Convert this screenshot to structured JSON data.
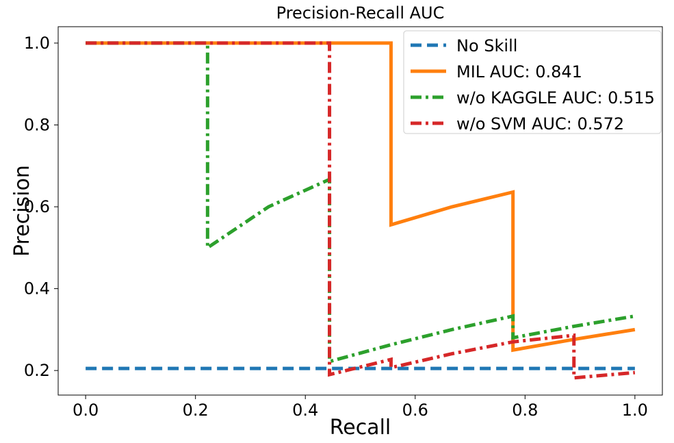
{
  "chart_data": {
    "type": "line",
    "title": "Precision-Recall AUC",
    "xlabel": "Recall",
    "ylabel": "Precision",
    "xlim": [
      -0.05,
      1.05
    ],
    "ylim": [
      0.14,
      1.04
    ],
    "xticks": [
      {
        "value": 0.0,
        "label": "0.0"
      },
      {
        "value": 0.2,
        "label": "0.2"
      },
      {
        "value": 0.4,
        "label": "0.4"
      },
      {
        "value": 0.6,
        "label": "0.6"
      },
      {
        "value": 0.8,
        "label": "0.8"
      },
      {
        "value": 1.0,
        "label": "1.0"
      }
    ],
    "yticks": [
      {
        "value": 0.2,
        "label": "0.2"
      },
      {
        "value": 0.4,
        "label": "0.4"
      },
      {
        "value": 0.6,
        "label": "0.6"
      },
      {
        "value": 0.8,
        "label": "0.8"
      },
      {
        "value": 1.0,
        "label": "1.0"
      }
    ],
    "grid": false,
    "legend_position": "top-right",
    "series": [
      {
        "name": "No Skill",
        "color": "#1f77b4",
        "style": "dashed",
        "x": [
          0.0,
          1.0
        ],
        "y": [
          0.205,
          0.205
        ]
      },
      {
        "name": "MIL AUC: 0.841",
        "color": "#ff7f0e",
        "style": "solid",
        "x": [
          0.0,
          0.111,
          0.222,
          0.333,
          0.444,
          0.556,
          0.556,
          0.667,
          0.778,
          0.778,
          0.889,
          1.0
        ],
        "y": [
          1.0,
          1.0,
          1.0,
          1.0,
          1.0,
          1.0,
          0.556,
          0.6,
          0.636,
          0.25,
          0.276,
          0.3
        ]
      },
      {
        "name": "w/o KAGGLE AUC: 0.515",
        "color": "#2ca02c",
        "style": "dashdot",
        "x": [
          0.0,
          0.111,
          0.222,
          0.222,
          0.333,
          0.444,
          0.444,
          0.556,
          0.667,
          0.778,
          0.778,
          0.889,
          1.0
        ],
        "y": [
          1.0,
          1.0,
          1.0,
          0.5,
          0.6,
          0.667,
          0.222,
          0.263,
          0.3,
          0.333,
          0.28,
          0.308,
          0.333
        ]
      },
      {
        "name": "w/o SVM AUC: 0.572",
        "color": "#d62728",
        "style": "dashdot",
        "x": [
          0.0,
          0.111,
          0.222,
          0.333,
          0.444,
          0.444,
          0.556,
          0.556,
          0.667,
          0.778,
          0.889,
          0.889,
          1.0
        ],
        "y": [
          1.0,
          1.0,
          1.0,
          1.0,
          1.0,
          0.19,
          0.227,
          0.207,
          0.241,
          0.27,
          0.286,
          0.182,
          0.195
        ]
      }
    ]
  }
}
